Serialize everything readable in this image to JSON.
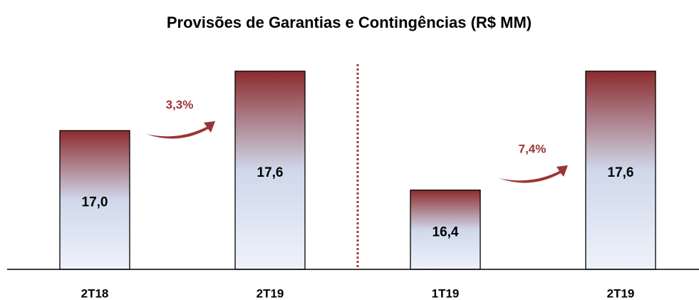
{
  "chart_data": {
    "type": "bar",
    "title": "Provisões de Garantias e Contingências (R$ MM)",
    "categories": [
      "2T18",
      "2T19",
      "1T19",
      "2T19"
    ],
    "values": [
      17.0,
      17.6,
      16.4,
      17.6
    ],
    "value_labels": [
      "17,0",
      "17,6",
      "16,4",
      "17,6"
    ],
    "annotations": [
      "3,3%",
      "7,4%"
    ],
    "ylim": [
      15.6,
      17.7
    ]
  }
}
